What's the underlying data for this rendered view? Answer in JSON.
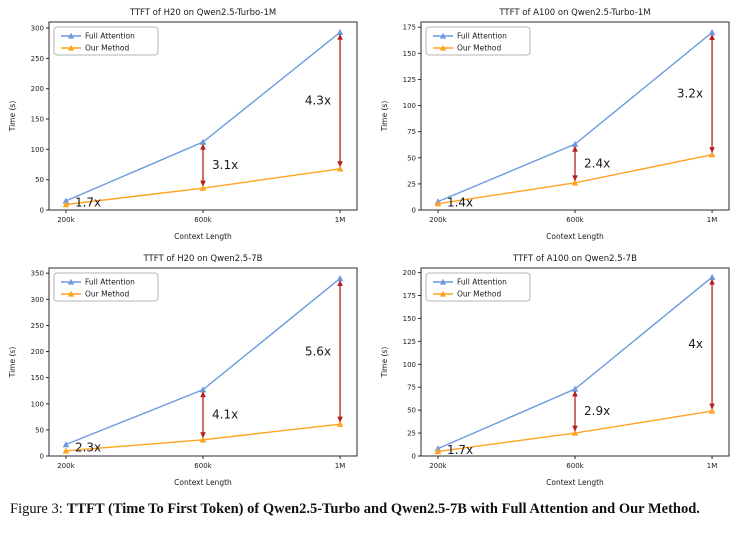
{
  "figure": {
    "caption_prefix": "Figure 3:",
    "caption_bold": "TTFT (Time To First Token) of Qwen2.5-Turbo and Qwen2.5-7B with Full Attention and Our Method."
  },
  "colors": {
    "full_attention": "#6c9be0",
    "our_method": "#ffa320",
    "annotation": "#b42020"
  },
  "chart_data": [
    {
      "type": "line",
      "title": "TTFT of H20 on Qwen2.5-Turbo-1M",
      "xlabel": "Context Length",
      "ylabel": "Time (s)",
      "categories": [
        "200k",
        "600k",
        "1M"
      ],
      "series": [
        {
          "name": "Full Attention",
          "color": "#6c9be0",
          "marker": "triangle",
          "values": [
            15,
            112,
            293
          ]
        },
        {
          "name": "Our Method",
          "color": "#ffa320",
          "marker": "triangle",
          "values": [
            9,
            36,
            68
          ]
        }
      ],
      "yticks": [
        0,
        50,
        100,
        150,
        200,
        250,
        300
      ],
      "ylim": [
        0,
        310
      ],
      "grid": false,
      "legend_position": "upper-left",
      "annotations": [
        {
          "x_index": 0,
          "label": "1.7x",
          "side": "right"
        },
        {
          "x_index": 1,
          "label": "3.1x",
          "side": "right"
        },
        {
          "x_index": 2,
          "label": "4.3x",
          "side": "left"
        }
      ]
    },
    {
      "type": "line",
      "title": "TTFT of A100 on Qwen2.5-Turbo-1M",
      "xlabel": "Context Length",
      "ylabel": "Time (s)",
      "categories": [
        "200k",
        "600k",
        "1M"
      ],
      "series": [
        {
          "name": "Full Attention",
          "color": "#6c9be0",
          "marker": "triangle",
          "values": [
            8,
            63,
            170
          ]
        },
        {
          "name": "Our Method",
          "color": "#ffa320",
          "marker": "triangle",
          "values": [
            6,
            26,
            53
          ]
        }
      ],
      "yticks": [
        0,
        25,
        50,
        75,
        100,
        125,
        150,
        175
      ],
      "ylim": [
        0,
        180
      ],
      "grid": false,
      "legend_position": "upper-left",
      "annotations": [
        {
          "x_index": 0,
          "label": "1.4x",
          "side": "right"
        },
        {
          "x_index": 1,
          "label": "2.4x",
          "side": "right"
        },
        {
          "x_index": 2,
          "label": "3.2x",
          "side": "left"
        }
      ]
    },
    {
      "type": "line",
      "title": "TTFT of H20 on Qwen2.5-7B",
      "xlabel": "Context Length",
      "ylabel": "Time (s)",
      "categories": [
        "200k",
        "600k",
        "1M"
      ],
      "series": [
        {
          "name": "Full Attention",
          "color": "#6c9be0",
          "marker": "triangle",
          "values": [
            22,
            127,
            340
          ]
        },
        {
          "name": "Our Method",
          "color": "#ffa320",
          "marker": "triangle",
          "values": [
            10,
            31,
            61
          ]
        }
      ],
      "yticks": [
        0,
        50,
        100,
        150,
        200,
        250,
        300,
        350
      ],
      "ylim": [
        0,
        360
      ],
      "grid": false,
      "legend_position": "upper-left",
      "annotations": [
        {
          "x_index": 0,
          "label": "2.3x",
          "side": "right"
        },
        {
          "x_index": 1,
          "label": "4.1x",
          "side": "right"
        },
        {
          "x_index": 2,
          "label": "5.6x",
          "side": "left"
        }
      ]
    },
    {
      "type": "line",
      "title": "TTFT of A100 on Qwen2.5-7B",
      "xlabel": "Context Length",
      "ylabel": "Time (s)",
      "categories": [
        "200k",
        "600k",
        "1M"
      ],
      "series": [
        {
          "name": "Full Attention",
          "color": "#6c9be0",
          "marker": "triangle",
          "values": [
            8,
            73,
            195
          ]
        },
        {
          "name": "Our Method",
          "color": "#ffa320",
          "marker": "triangle",
          "values": [
            5,
            25,
            49
          ]
        }
      ],
      "yticks": [
        0,
        25,
        50,
        75,
        100,
        125,
        150,
        175,
        200
      ],
      "ylim": [
        0,
        205
      ],
      "grid": false,
      "legend_position": "upper-left",
      "annotations": [
        {
          "x_index": 0,
          "label": "1.7x",
          "side": "right"
        },
        {
          "x_index": 1,
          "label": "2.9x",
          "side": "right"
        },
        {
          "x_index": 2,
          "label": "4x",
          "side": "left"
        }
      ]
    }
  ]
}
